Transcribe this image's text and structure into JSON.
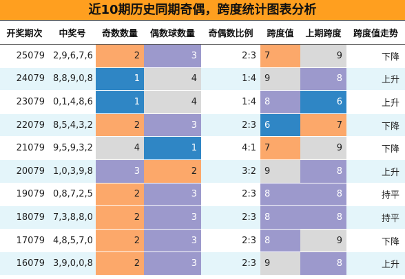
{
  "title": "近10期历史同期奇偶，跨度统计图表分析",
  "headers": [
    "开奖期次",
    "中奖号",
    "奇数数量",
    "偶数球数量",
    "奇偶数比例",
    "跨度值",
    "上期跨度",
    "跨度值走势"
  ],
  "colors": {
    "orange": "#fca86a",
    "purple": "#9c99cc",
    "blue": "#2f86c5",
    "gray": "#d9d9d9"
  },
  "rows": [
    {
      "period": "25079",
      "numbers": "2,9,6,7,6",
      "odd": "2",
      "even": "3",
      "ratio": "2:3",
      "span": "7",
      "prev_span": "9",
      "trend": "下降",
      "odd_color": "orange",
      "even_color": "purple",
      "span_color": "orange",
      "prev_color": "gray"
    },
    {
      "period": "24079",
      "numbers": "8,8,9,0,8",
      "odd": "1",
      "even": "4",
      "ratio": "1:4",
      "span": "9",
      "prev_span": "8",
      "trend": "上升",
      "odd_color": "blue",
      "even_color": "gray",
      "span_color": "gray",
      "prev_color": "purple"
    },
    {
      "period": "23079",
      "numbers": "0,1,4,8,6",
      "odd": "1",
      "even": "4",
      "ratio": "1:4",
      "span": "8",
      "prev_span": "6",
      "trend": "上升",
      "odd_color": "blue",
      "even_color": "gray",
      "span_color": "purple",
      "prev_color": "blue"
    },
    {
      "period": "22079",
      "numbers": "8,5,4,3,2",
      "odd": "2",
      "even": "3",
      "ratio": "2:3",
      "span": "6",
      "prev_span": "7",
      "trend": "下降",
      "odd_color": "orange",
      "even_color": "purple",
      "span_color": "blue",
      "prev_color": "orange"
    },
    {
      "period": "21079",
      "numbers": "9,5,9,3,2",
      "odd": "4",
      "even": "1",
      "ratio": "4:1",
      "span": "7",
      "prev_span": "9",
      "trend": "下降",
      "odd_color": "gray",
      "even_color": "blue",
      "span_color": "orange",
      "prev_color": "gray"
    },
    {
      "period": "20079",
      "numbers": "1,0,3,9,8",
      "odd": "3",
      "even": "2",
      "ratio": "3:2",
      "span": "9",
      "prev_span": "8",
      "trend": "上升",
      "odd_color": "purple",
      "even_color": "orange",
      "span_color": "gray",
      "prev_color": "purple"
    },
    {
      "period": "19079",
      "numbers": "0,8,7,2,5",
      "odd": "2",
      "even": "3",
      "ratio": "2:3",
      "span": "8",
      "prev_span": "8",
      "trend": "持平",
      "odd_color": "orange",
      "even_color": "purple",
      "span_color": "purple",
      "prev_color": "purple"
    },
    {
      "period": "18079",
      "numbers": "7,3,8,8,0",
      "odd": "2",
      "even": "3",
      "ratio": "2:3",
      "span": "8",
      "prev_span": "8",
      "trend": "持平",
      "odd_color": "orange",
      "even_color": "purple",
      "span_color": "purple",
      "prev_color": "purple"
    },
    {
      "period": "17079",
      "numbers": "4,8,5,7,0",
      "odd": "2",
      "even": "3",
      "ratio": "2:3",
      "span": "8",
      "prev_span": "9",
      "trend": "下降",
      "odd_color": "orange",
      "even_color": "purple",
      "span_color": "purple",
      "prev_color": "gray"
    },
    {
      "period": "16079",
      "numbers": "3,9,0,0,8",
      "odd": "2",
      "even": "3",
      "ratio": "2:3",
      "span": "9",
      "prev_span": "8",
      "trend": "上升",
      "odd_color": "orange",
      "even_color": "purple",
      "span_color": "gray",
      "prev_color": "purple"
    }
  ]
}
